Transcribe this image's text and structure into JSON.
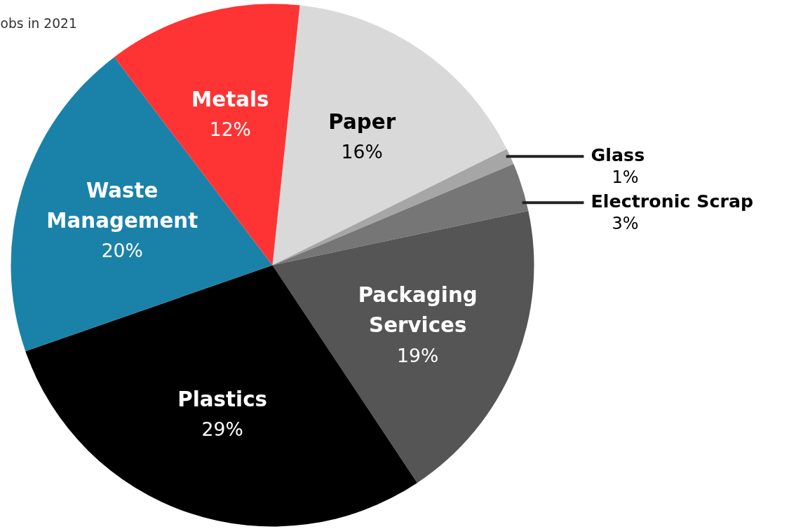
{
  "chart_data": {
    "type": "pie",
    "title": "obs in 2021",
    "categories": [
      "Paper",
      "Glass",
      "Electronic Scrap",
      "Packaging Services",
      "Plastics",
      "Waste Management",
      "Metals"
    ],
    "values": [
      16,
      1,
      3,
      19,
      29,
      20,
      12
    ],
    "colors": [
      "#d9d9d9",
      "#a6a6a6",
      "#767676",
      "#555555",
      "#000000",
      "#1a82a8",
      "#fe3434"
    ],
    "data_labels": true,
    "value_labels": [
      "16%",
      "1%",
      "3%",
      "19%",
      "29%",
      "20%",
      "12%"
    ]
  }
}
